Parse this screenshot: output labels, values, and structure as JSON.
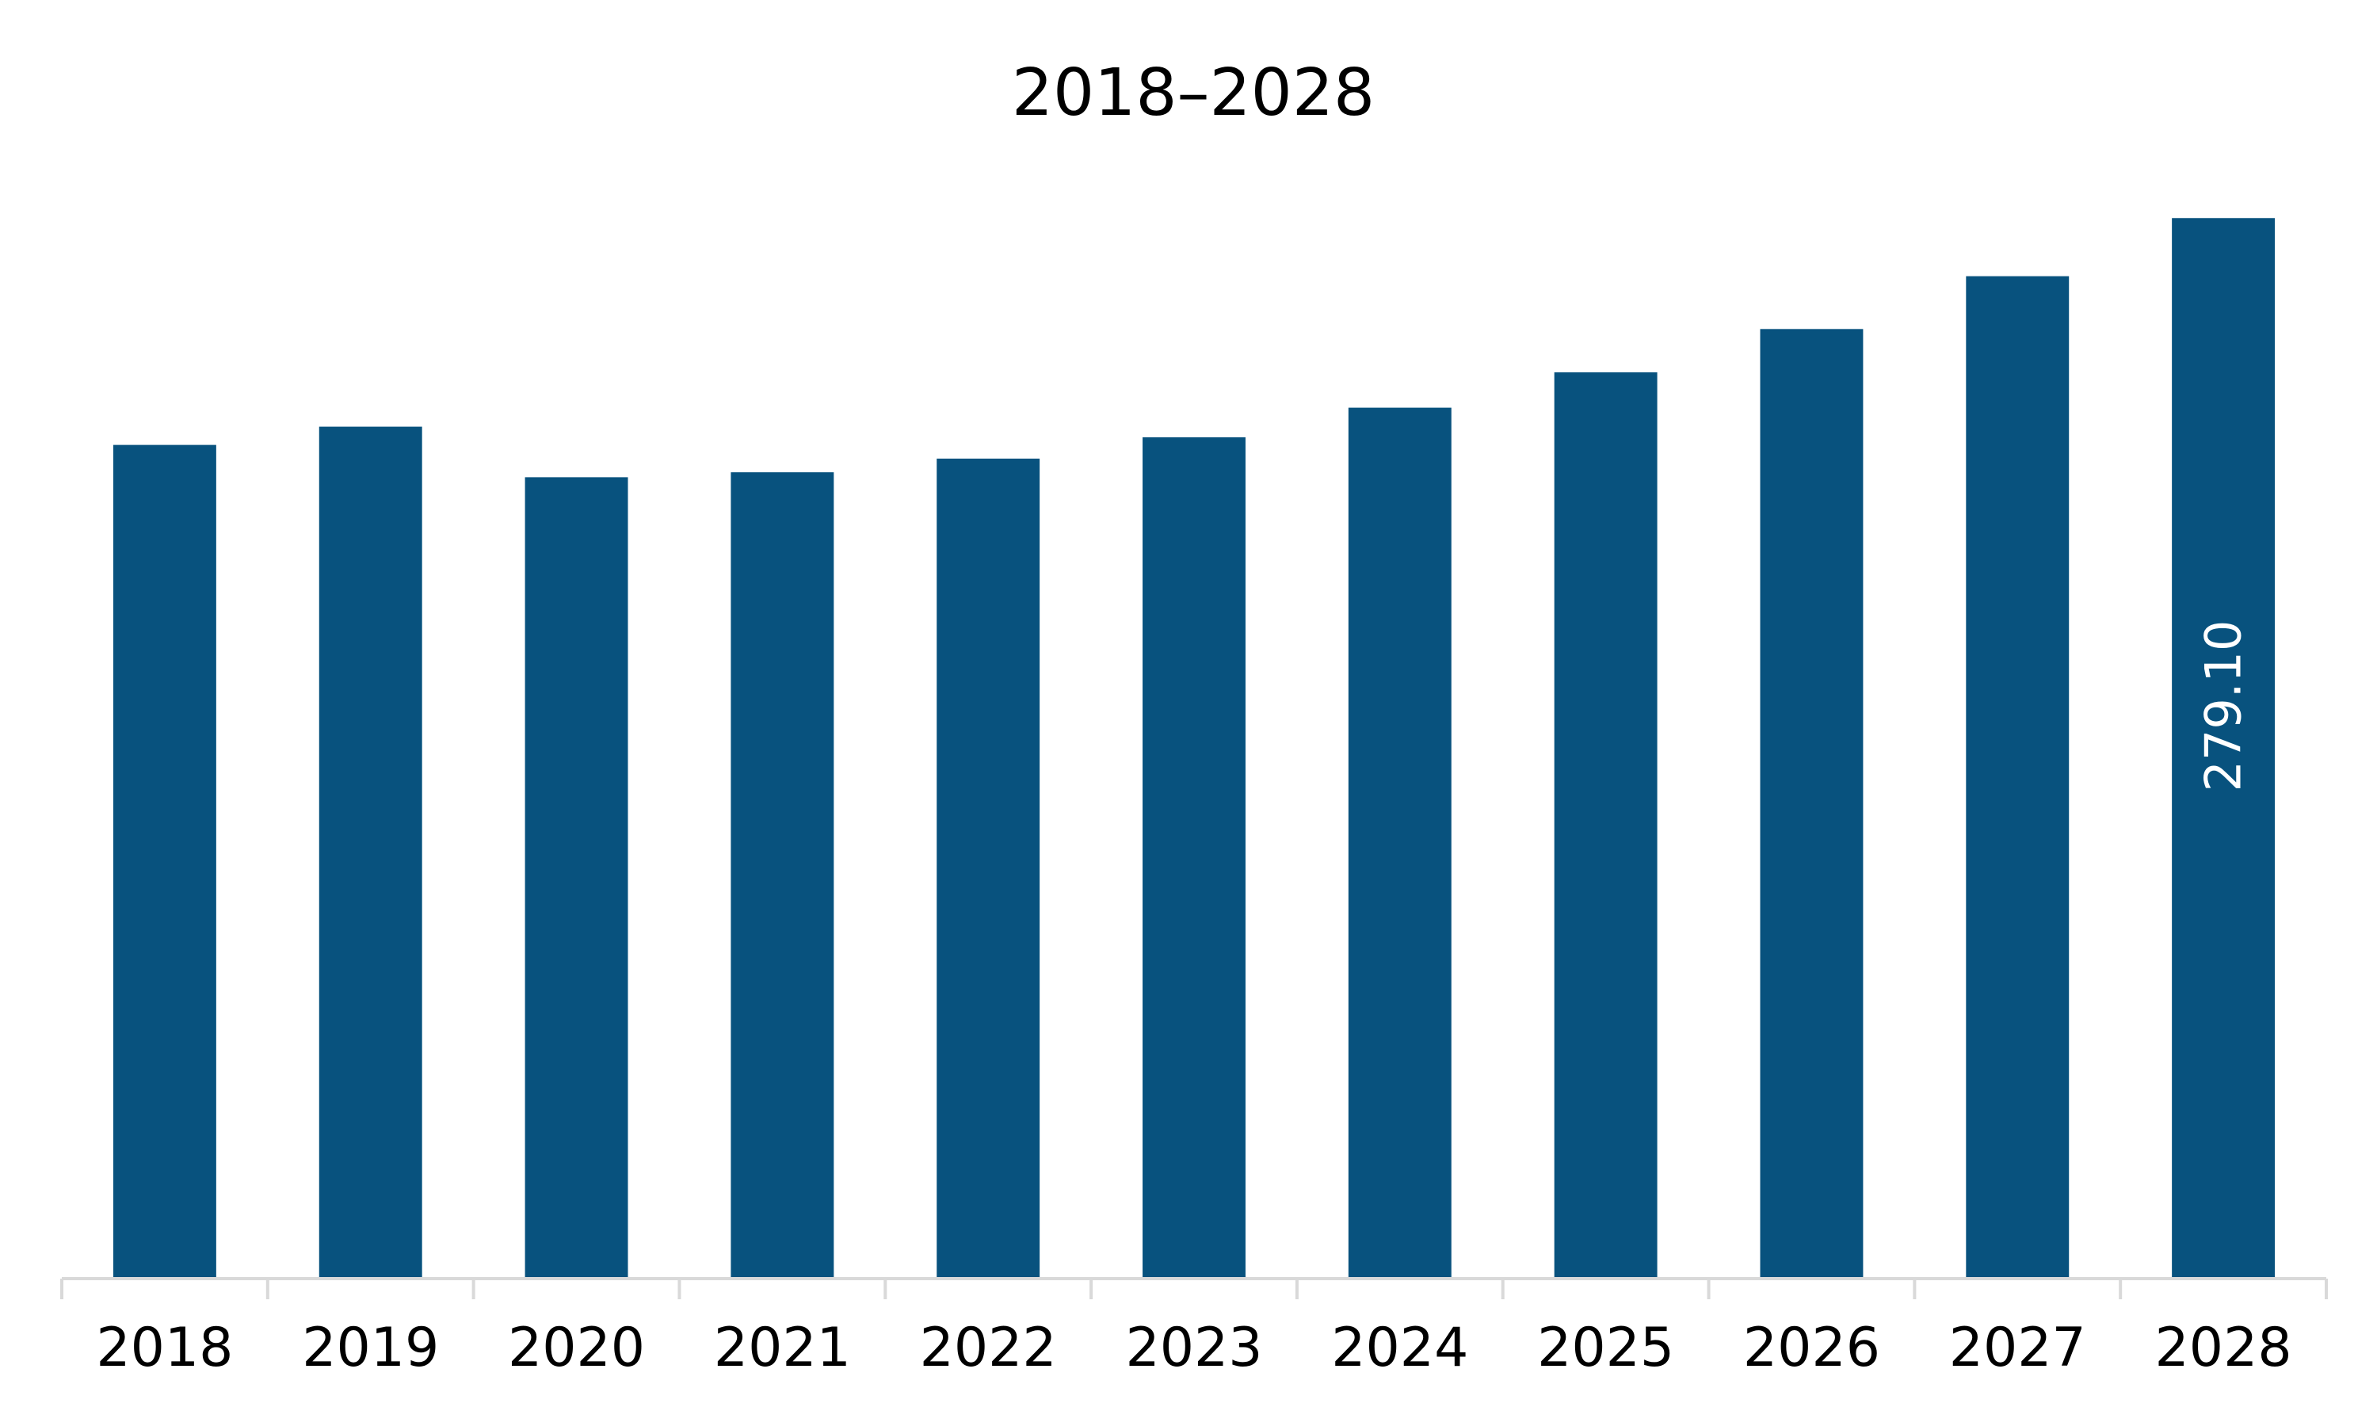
{
  "chart_data": {
    "type": "bar",
    "title": "2018–2028",
    "xlabel": "",
    "ylabel": "",
    "categories": [
      "2018",
      "2019",
      "2020",
      "2021",
      "2022",
      "2023",
      "2024",
      "2025",
      "2026",
      "2027",
      "2028"
    ],
    "values": [
      219.4,
      224.2,
      210.9,
      212.2,
      215.8,
      221.4,
      229.2,
      238.5,
      249.9,
      263.8,
      279.1
    ],
    "data_labels": [
      {
        "index": 10,
        "text": "279.10"
      }
    ],
    "ylim": [
      0,
      300
    ],
    "grid": false,
    "legend": "none",
    "colors": {
      "bar": "#08527e",
      "axis": "#d9d9d9",
      "text": "#000000",
      "data_label": "#ffffff"
    }
  }
}
